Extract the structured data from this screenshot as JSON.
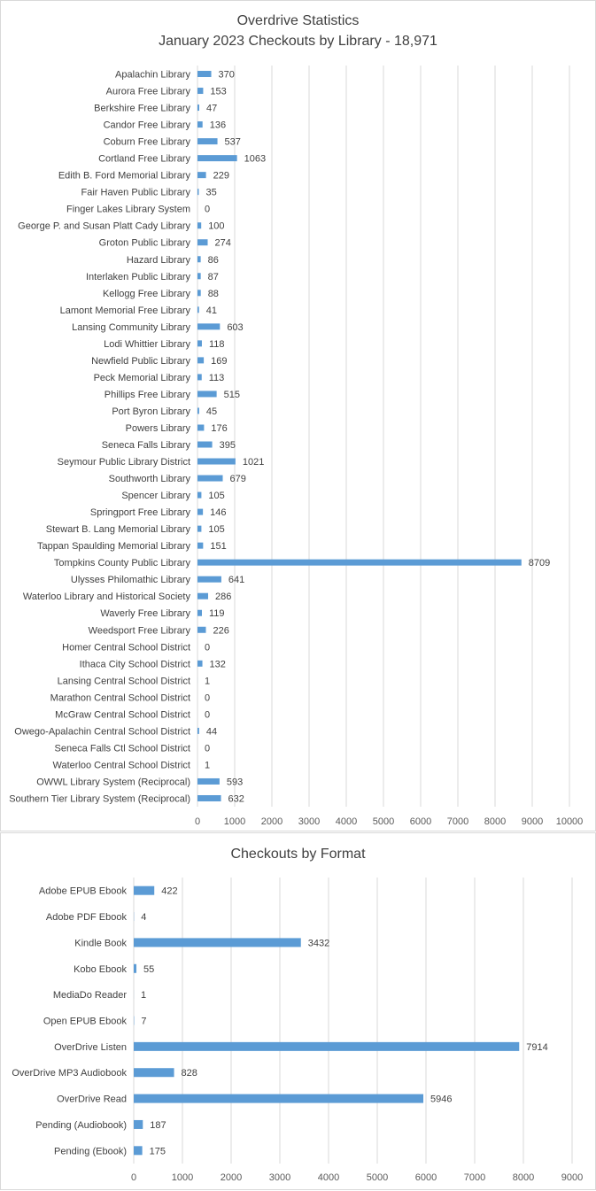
{
  "chart_data": [
    {
      "type": "bar",
      "orientation": "horizontal",
      "title": "Overdrive Statistics",
      "subtitle": "January 2023 Checkouts by Library - 18,971",
      "xlabel": "",
      "ylabel": "",
      "xlim": [
        0,
        10000
      ],
      "xticks": [
        0,
        1000,
        2000,
        3000,
        4000,
        5000,
        6000,
        7000,
        8000,
        9000,
        10000
      ],
      "grid": "vertical",
      "legend": "none",
      "bar_color": "#5b9bd5",
      "categories": [
        "Apalachin Library",
        "Aurora Free Library",
        "Berkshire Free Library",
        "Candor Free Library",
        "Coburn Free Library",
        "Cortland Free Library",
        "Edith B. Ford Memorial Library",
        "Fair Haven Public Library",
        "Finger Lakes Library System",
        "George P. and Susan Platt Cady Library",
        "Groton Public Library",
        "Hazard Library",
        "Interlaken Public Library",
        "Kellogg Free Library",
        "Lamont Memorial Free Library",
        "Lansing Community Library",
        "Lodi Whittier Library",
        "Newfield Public Library",
        "Peck Memorial Library",
        "Phillips Free Library",
        "Port Byron Library",
        "Powers Library",
        "Seneca Falls Library",
        "Seymour Public Library District",
        "Southworth Library",
        "Spencer Library",
        "Springport Free Library",
        "Stewart B. Lang Memorial Library",
        "Tappan Spaulding Memorial Library",
        "Tompkins County Public Library",
        "Ulysses Philomathic Library",
        "Waterloo Library and Historical Society",
        "Waverly Free Library",
        "Weedsport Free Library",
        "Homer Central School District",
        "Ithaca City School District",
        "Lansing Central School District",
        "Marathon Central School District",
        "McGraw Central School District",
        "Owego-Apalachin Central School District",
        "Seneca Falls Ctl School District",
        "Waterloo Central School District",
        "OWWL Library System (Reciprocal)",
        "Southern Tier Library System (Reciprocal)"
      ],
      "values": [
        370,
        153,
        47,
        136,
        537,
        1063,
        229,
        35,
        0,
        100,
        274,
        86,
        87,
        88,
        41,
        603,
        118,
        169,
        113,
        515,
        45,
        176,
        395,
        1021,
        679,
        105,
        146,
        105,
        151,
        8709,
        641,
        286,
        119,
        226,
        0,
        132,
        1,
        0,
        0,
        44,
        0,
        1,
        593,
        632
      ]
    },
    {
      "type": "bar",
      "orientation": "horizontal",
      "title": "Checkouts by Format",
      "xlabel": "",
      "ylabel": "",
      "xlim": [
        0,
        9000
      ],
      "xticks": [
        0,
        1000,
        2000,
        3000,
        4000,
        5000,
        6000,
        7000,
        8000,
        9000
      ],
      "grid": "vertical",
      "legend": "none",
      "bar_color": "#5b9bd5",
      "categories": [
        "Adobe EPUB Ebook",
        "Adobe PDF Ebook",
        "Kindle Book",
        "Kobo Ebook",
        "MediaDo Reader",
        "Open EPUB Ebook",
        "OverDrive Listen",
        "OverDrive MP3 Audiobook",
        "OverDrive Read",
        "Pending (Audiobook)",
        "Pending (Ebook)"
      ],
      "values": [
        422,
        4,
        3432,
        55,
        1,
        7,
        7914,
        828,
        5946,
        187,
        175
      ]
    }
  ]
}
